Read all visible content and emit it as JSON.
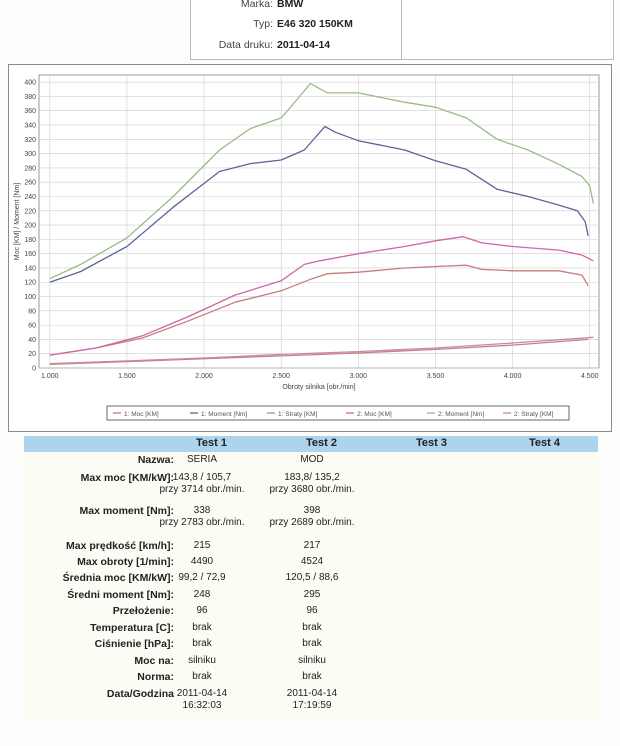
{
  "header": {
    "marka_label": "Marka:",
    "marka_value": "BMW",
    "typ_label": "Typ:",
    "typ_value": "E46 320 150KM",
    "data_label": "Data druku:",
    "data_value": "2011-04-14"
  },
  "chart_data": {
    "type": "line",
    "title": "",
    "xlabel": "Obroty silnika [obr./min]",
    "ylabel": "Moc [KM] / Moment [Nm]",
    "xlim": [
      930,
      4560
    ],
    "ylim": [
      0,
      410
    ],
    "x_ticks": [
      1000,
      1500,
      2000,
      2500,
      3000,
      3500,
      4000,
      4500
    ],
    "x_tick_labels": [
      "1.000",
      "1.500",
      "2.000",
      "2.500",
      "3.000",
      "3.500",
      "4.000",
      "4.500"
    ],
    "y_ticks": [
      0,
      20,
      40,
      60,
      80,
      100,
      120,
      140,
      160,
      180,
      200,
      220,
      240,
      260,
      280,
      300,
      320,
      340,
      360,
      380,
      400
    ],
    "grid": true,
    "legend_position": "bottom",
    "series": [
      {
        "name": "1: Moc [KM]",
        "color": "#c97b7b",
        "x": [
          1000,
          1300,
          1600,
          1900,
          2200,
          2500,
          2700,
          2800,
          3000,
          3300,
          3500,
          3700,
          3800,
          4000,
          4300,
          4450,
          4490
        ],
        "y": [
          18,
          28,
          42,
          66,
          92,
          108,
          125,
          132,
          134,
          140,
          142,
          143.8,
          138,
          136,
          136,
          130,
          115
        ]
      },
      {
        "name": "1: Moment [Nm]",
        "color": "#5e6398",
        "x": [
          1000,
          1200,
          1500,
          1800,
          2100,
          2300,
          2500,
          2650,
          2783,
          2850,
          3000,
          3300,
          3500,
          3700,
          3900,
          4100,
          4300,
          4420,
          4470,
          4490
        ],
        "y": [
          120,
          135,
          170,
          225,
          275,
          286,
          291,
          305,
          338,
          330,
          318,
          305,
          290,
          278,
          250,
          240,
          228,
          220,
          205,
          185
        ]
      },
      {
        "name": "1: Straty [KM]",
        "color": "#c98080",
        "x": [
          1000,
          1500,
          2000,
          2500,
          3000,
          3500,
          4000,
          4490
        ],
        "y": [
          5,
          9,
          13,
          17,
          21,
          26,
          32,
          40
        ]
      },
      {
        "name": "2: Moc [KM]",
        "color": "#cc66aa",
        "x": [
          1000,
          1300,
          1600,
          1900,
          2200,
          2500,
          2650,
          2750,
          3000,
          3300,
          3500,
          3680,
          3800,
          4000,
          4300,
          4450,
          4524
        ],
        "y": [
          18,
          28,
          45,
          72,
          102,
          122,
          145,
          150,
          160,
          170,
          178,
          183.8,
          175,
          170,
          165,
          158,
          150
        ]
      },
      {
        "name": "2: Moment [Nm]",
        "color": "#99bb88",
        "x": [
          1000,
          1200,
          1500,
          1800,
          2100,
          2300,
          2500,
          2600,
          2689,
          2800,
          3000,
          3300,
          3500,
          3700,
          3900,
          4100,
          4300,
          4450,
          4500,
          4524
        ],
        "y": [
          125,
          145,
          182,
          240,
          305,
          335,
          350,
          375,
          398,
          385,
          385,
          372,
          365,
          350,
          320,
          305,
          285,
          268,
          255,
          230
        ]
      },
      {
        "name": "2: Straty [KM]",
        "color": "#c48aa8",
        "x": [
          1000,
          1500,
          2000,
          2500,
          3000,
          3500,
          4000,
          4524
        ],
        "y": [
          6,
          10,
          14,
          19,
          23,
          28,
          35,
          43
        ]
      }
    ]
  },
  "table": {
    "headers": [
      "Test 1",
      "Test 2",
      "Test 3",
      "Test 4"
    ],
    "rows": [
      {
        "label": "Nazwa:",
        "t1": [
          "SERIA"
        ],
        "t2": [
          "MOD"
        ]
      },
      {
        "label": "Max moc [KM/kW]:",
        "t1": [
          "143,8 / 105,7",
          "przy 3714 obr./min."
        ],
        "t2": [
          "183,8/ 135,2",
          "przy 3680 obr./min."
        ]
      },
      {
        "label": "Max moment [Nm]:",
        "t1": [
          "338",
          "przy 2783 obr./min."
        ],
        "t2": [
          "398",
          "przy 2689 obr./min."
        ]
      },
      {
        "label": "Max prędkość [km/h]:",
        "t1": [
          "215"
        ],
        "t2": [
          "217"
        ]
      },
      {
        "label": "Max obroty [1/min]:",
        "t1": [
          "4490"
        ],
        "t2": [
          "4524"
        ]
      },
      {
        "label": "Średnia moc [KM/kW]:",
        "t1": [
          "99,2 / 72,9"
        ],
        "t2": [
          "120,5 / 88,6"
        ]
      },
      {
        "label": "Średni moment [Nm]:",
        "t1": [
          "248"
        ],
        "t2": [
          "295"
        ]
      },
      {
        "label": "Przełożenie:",
        "t1": [
          "96"
        ],
        "t2": [
          "96"
        ]
      },
      {
        "label": "Temperatura [C]:",
        "t1": [
          "brak"
        ],
        "t2": [
          "brak"
        ]
      },
      {
        "label": "Ciśnienie [hPa]:",
        "t1": [
          "brak"
        ],
        "t2": [
          "brak"
        ]
      },
      {
        "label": "Moc na:",
        "t1": [
          "silniku"
        ],
        "t2": [
          "silniku"
        ]
      },
      {
        "label": "Norma:",
        "t1": [
          "brak"
        ],
        "t2": [
          "brak"
        ]
      },
      {
        "label": "Data/Godzina",
        "t1": [
          "2011-04-14",
          "16:32:03"
        ],
        "t2": [
          "2011-04-14",
          "17:19:59"
        ]
      }
    ]
  }
}
